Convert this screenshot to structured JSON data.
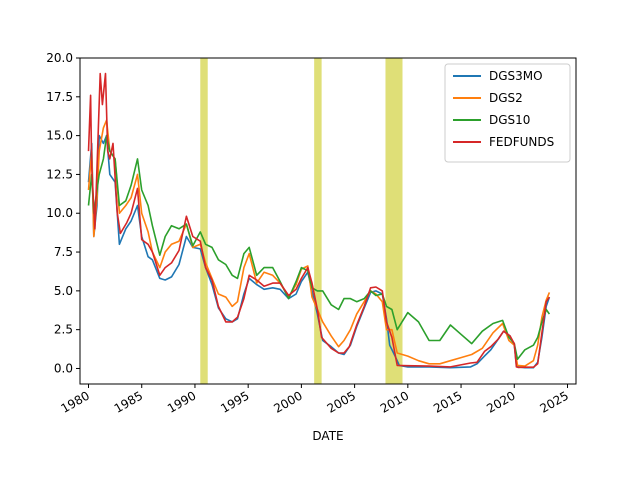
{
  "chart_data": {
    "type": "line",
    "title": "",
    "xlabel": "DATE",
    "ylabel": "",
    "xlim": [
      1979.2,
      2025.8
    ],
    "ylim": [
      -1.0,
      20.0
    ],
    "grid": false,
    "legend_position": "top-right",
    "x_ticks": [
      "1980",
      "1985",
      "1990",
      "1995",
      "2000",
      "2005",
      "2010",
      "2015",
      "2020",
      "2025"
    ],
    "y_ticks": [
      "0.0",
      "2.5",
      "5.0",
      "7.5",
      "10.0",
      "12.5",
      "15.0",
      "17.5",
      "20.0"
    ],
    "recession_color": "#d4d44a",
    "recessions": [
      {
        "start": 1990.5,
        "end": 1991.2
      },
      {
        "start": 2001.2,
        "end": 2001.9
      },
      {
        "start": 2007.9,
        "end": 2009.5
      }
    ],
    "series": [
      {
        "name": "DGS3MO",
        "color": "#1f77b4",
        "x": [
          1980.0,
          1980.3,
          1980.5,
          1980.8,
          1981.0,
          1981.4,
          1981.7,
          1982.0,
          1982.5,
          1982.9,
          1983.5,
          1984.0,
          1984.6,
          1985.0,
          1985.6,
          1986.0,
          1986.7,
          1987.2,
          1987.8,
          1988.5,
          1989.2,
          1989.8,
          1990.5,
          1991.0,
          1991.6,
          1992.2,
          1992.9,
          1993.5,
          1994.0,
          1994.6,
          1995.1,
          1995.8,
          1996.5,
          1997.3,
          1998.0,
          1998.8,
          1999.5,
          2000.0,
          2000.6,
          2001.0,
          2001.5,
          2002.0,
          2002.8,
          2003.5,
          2004.0,
          2004.6,
          2005.2,
          2005.9,
          2006.5,
          2007.0,
          2007.6,
          2008.0,
          2008.3,
          2008.8,
          2009.2,
          2010.0,
          2012.0,
          2014.0,
          2015.9,
          2016.5,
          2017.2,
          2017.8,
          2018.5,
          2019.0,
          2019.6,
          2020.0,
          2020.2,
          2020.4,
          2021.0,
          2021.8,
          2022.2,
          2022.6,
          2023.0,
          2023.3
        ],
        "values": [
          12.0,
          14.5,
          8.5,
          10.5,
          15.0,
          14.5,
          15.0,
          12.5,
          12.0,
          8.0,
          9.0,
          9.5,
          10.5,
          8.5,
          7.2,
          7.0,
          5.8,
          5.7,
          5.9,
          6.7,
          8.5,
          7.8,
          7.7,
          6.5,
          5.4,
          3.9,
          3.2,
          3.0,
          3.2,
          4.8,
          5.8,
          5.4,
          5.1,
          5.2,
          5.1,
          4.5,
          4.8,
          5.6,
          6.2,
          5.0,
          3.5,
          1.8,
          1.4,
          1.0,
          0.9,
          1.5,
          2.7,
          3.9,
          4.9,
          5.0,
          4.8,
          3.2,
          1.5,
          0.8,
          0.2,
          0.1,
          0.1,
          0.05,
          0.1,
          0.3,
          0.8,
          1.2,
          1.9,
          2.4,
          2.1,
          1.5,
          0.2,
          0.1,
          0.05,
          0.05,
          0.4,
          2.0,
          4.0,
          4.6
        ]
      },
      {
        "name": "DGS2",
        "color": "#ff7f0e",
        "x": [
          1980.0,
          1980.3,
          1980.5,
          1980.8,
          1981.0,
          1981.4,
          1981.7,
          1982.0,
          1982.5,
          1982.9,
          1983.5,
          1984.0,
          1984.6,
          1985.0,
          1985.6,
          1986.0,
          1986.7,
          1987.2,
          1987.8,
          1988.5,
          1989.2,
          1989.8,
          1990.5,
          1991.0,
          1991.6,
          1992.2,
          1992.9,
          1993.5,
          1994.0,
          1994.6,
          1995.1,
          1995.8,
          1996.5,
          1997.3,
          1998.0,
          1998.8,
          1999.5,
          2000.0,
          2000.6,
          2001.0,
          2001.5,
          2002.0,
          2002.8,
          2003.5,
          2004.0,
          2004.6,
          2005.2,
          2005.9,
          2006.5,
          2007.0,
          2007.6,
          2008.0,
          2008.5,
          2009.0,
          2010.0,
          2011.0,
          2012.0,
          2013.0,
          2014.0,
          2015.0,
          2016.0,
          2017.0,
          2018.0,
          2018.9,
          2019.5,
          2020.0,
          2020.3,
          2021.0,
          2021.8,
          2022.2,
          2022.6,
          2023.0,
          2023.3
        ],
        "values": [
          11.5,
          14.0,
          8.5,
          11.0,
          14.0,
          15.5,
          16.0,
          14.0,
          13.5,
          10.0,
          10.5,
          11.0,
          12.5,
          10.0,
          8.8,
          7.5,
          6.5,
          7.5,
          8.0,
          8.2,
          9.3,
          7.8,
          8.0,
          6.8,
          5.8,
          4.8,
          4.6,
          4.0,
          4.3,
          6.5,
          7.4,
          5.5,
          6.2,
          6.0,
          5.5,
          4.6,
          5.4,
          6.4,
          6.6,
          4.6,
          3.8,
          3.0,
          2.1,
          1.4,
          1.8,
          2.5,
          3.5,
          4.3,
          5.0,
          4.8,
          4.3,
          2.5,
          2.5,
          1.0,
          0.8,
          0.5,
          0.3,
          0.3,
          0.5,
          0.7,
          0.9,
          1.3,
          2.3,
          2.9,
          1.8,
          1.5,
          0.2,
          0.15,
          0.5,
          1.5,
          3.3,
          4.4,
          4.9
        ]
      },
      {
        "name": "DGS10",
        "color": "#2ca02c",
        "x": [
          1980.0,
          1980.3,
          1980.5,
          1980.8,
          1981.0,
          1981.4,
          1981.7,
          1982.0,
          1982.5,
          1982.9,
          1983.5,
          1984.0,
          1984.6,
          1985.0,
          1985.6,
          1986.0,
          1986.7,
          1987.2,
          1987.8,
          1988.5,
          1989.2,
          1989.8,
          1990.5,
          1991.0,
          1991.6,
          1992.2,
          1992.9,
          1993.5,
          1994.0,
          1994.6,
          1995.1,
          1995.8,
          1996.5,
          1997.3,
          1998.0,
          1998.8,
          1999.5,
          2000.0,
          2000.6,
          2001.0,
          2001.5,
          2002.0,
          2002.8,
          2003.5,
          2004.0,
          2004.6,
          2005.2,
          2005.9,
          2006.5,
          2007.0,
          2007.6,
          2008.0,
          2008.5,
          2009.0,
          2010.0,
          2011.0,
          2012.0,
          2013.0,
          2014.0,
          2015.0,
          2016.0,
          2017.0,
          2018.0,
          2018.9,
          2019.5,
          2020.0,
          2020.3,
          2021.0,
          2021.8,
          2022.2,
          2022.6,
          2023.0,
          2023.3
        ],
        "values": [
          10.5,
          12.5,
          10.0,
          11.5,
          12.5,
          13.5,
          15.0,
          14.0,
          13.5,
          10.5,
          10.8,
          11.8,
          13.5,
          11.5,
          10.5,
          9.2,
          7.3,
          8.5,
          9.2,
          9.0,
          9.3,
          7.9,
          8.8,
          8.0,
          7.8,
          7.0,
          6.7,
          6.0,
          5.8,
          7.4,
          7.8,
          6.0,
          6.5,
          6.5,
          5.6,
          4.5,
          5.6,
          6.5,
          6.3,
          5.2,
          5.0,
          5.0,
          4.1,
          3.8,
          4.5,
          4.5,
          4.3,
          4.5,
          5.0,
          4.7,
          4.8,
          4.0,
          3.8,
          2.5,
          3.6,
          3.0,
          1.8,
          1.8,
          2.8,
          2.2,
          1.6,
          2.4,
          2.9,
          3.1,
          2.0,
          1.6,
          0.6,
          1.2,
          1.5,
          2.0,
          3.0,
          3.8,
          3.5
        ]
      },
      {
        "name": "FEDFUNDS",
        "color": "#d62728",
        "x": [
          1980.0,
          1980.2,
          1980.3,
          1980.6,
          1980.9,
          1981.1,
          1981.3,
          1981.6,
          1981.8,
          1982.0,
          1982.3,
          1982.7,
          1983.0,
          1983.6,
          1984.0,
          1984.6,
          1985.0,
          1985.6,
          1986.0,
          1986.7,
          1987.2,
          1987.8,
          1988.5,
          1989.2,
          1989.8,
          1990.5,
          1991.0,
          1991.6,
          1992.2,
          1992.9,
          1993.5,
          1994.0,
          1994.6,
          1995.1,
          1995.8,
          1996.5,
          1997.3,
          1998.0,
          1998.8,
          1999.5,
          2000.0,
          2000.6,
          2001.0,
          2001.5,
          2001.9,
          2002.8,
          2003.5,
          2004.0,
          2004.5,
          2005.2,
          2005.9,
          2006.5,
          2007.0,
          2007.6,
          2008.0,
          2008.5,
          2009.0,
          2010.0,
          2012.0,
          2014.0,
          2015.9,
          2016.5,
          2017.2,
          2017.8,
          2018.5,
          2019.0,
          2019.6,
          2020.0,
          2020.2,
          2020.4,
          2021.0,
          2021.8,
          2022.2,
          2022.6,
          2023.0,
          2023.3
        ],
        "values": [
          14.0,
          17.6,
          13.0,
          9.0,
          15.0,
          19.0,
          17.0,
          19.0,
          14.0,
          13.5,
          14.5,
          10.0,
          8.7,
          9.4,
          10.0,
          11.6,
          8.3,
          8.0,
          7.5,
          6.0,
          6.5,
          6.8,
          7.6,
          9.8,
          8.5,
          8.2,
          6.5,
          5.7,
          4.0,
          3.0,
          3.0,
          3.3,
          4.5,
          6.0,
          5.7,
          5.3,
          5.5,
          5.5,
          4.7,
          5.1,
          5.8,
          6.5,
          5.5,
          3.8,
          2.0,
          1.3,
          1.0,
          1.0,
          1.4,
          2.8,
          4.0,
          5.2,
          5.25,
          5.0,
          3.0,
          2.0,
          0.2,
          0.18,
          0.15,
          0.1,
          0.35,
          0.4,
          1.1,
          1.4,
          1.9,
          2.4,
          2.1,
          1.6,
          0.1,
          0.06,
          0.08,
          0.08,
          0.3,
          2.3,
          4.3,
          4.6
        ]
      }
    ]
  }
}
